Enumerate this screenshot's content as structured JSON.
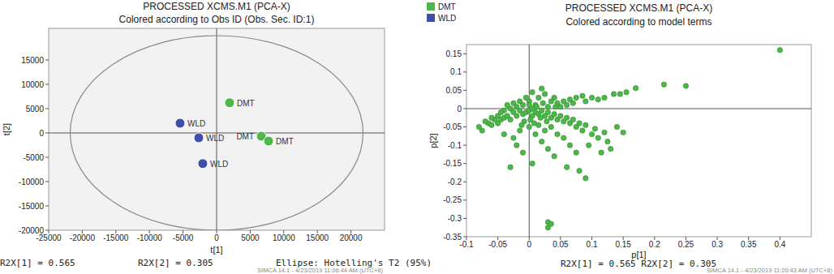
{
  "chart_data": [
    {
      "type": "scatter",
      "title": "PROCESSED XCMS.M1 (PCA-X)",
      "subtitle": "Colored according to Obs ID (Obs. Sec. ID:1)",
      "x_label": "t[1]",
      "y_label": "t[2]",
      "xlim": [
        -25000,
        25000
      ],
      "ylim": [
        -20000,
        21500
      ],
      "xticks": [
        -25000,
        -20000,
        -15000,
        -10000,
        -5000,
        0,
        5000,
        10000,
        15000,
        20000
      ],
      "yticks": [
        -20000,
        -15000,
        -10000,
        -5000,
        0,
        5000,
        10000,
        15000
      ],
      "legend": "top-right",
      "marker": "circle",
      "series": [
        {
          "name": "DMT",
          "color": "#4cb849",
          "x": [
            1930,
            6650,
            7740
          ],
          "values": [
            6200,
            -670,
            -1670
          ],
          "point_labels": [
            "DMT",
            "DMT",
            "DMT"
          ]
        },
        {
          "name": "WLD",
          "color": "#3f4fa8",
          "x": [
            -5440,
            -2660,
            -2060
          ],
          "values": [
            2000,
            -1000,
            -6300
          ],
          "point_labels": [
            "WLD",
            "WLD",
            "WLD"
          ]
        }
      ],
      "ellipse": {
        "label": "Ellipse: Hotelling's T2 (95%)",
        "center": [
          0,
          0
        ],
        "rx": 21800,
        "ry": 20000
      },
      "footer": [
        "R2X[1] = 0.565",
        "R2X[2] = 0.305"
      ],
      "stamp": "SIMCA 14.1 - 4/23/2019 11:06:44 AM (UTC+8)"
    },
    {
      "type": "scatter",
      "title": "PROCESSED XCMS.M1 (PCA-X)",
      "subtitle": "Colored according to model terms",
      "x_label": "p[1]",
      "y_label": "p[2]",
      "xlim": [
        -0.1,
        0.45
      ],
      "ylim": [
        -0.35,
        0.175
      ],
      "xticks": [
        -0.1,
        -0.05,
        0,
        0.05,
        0.1,
        0.15,
        0.2,
        0.25,
        0.3,
        0.35,
        0.4
      ],
      "yticks": [
        -0.35,
        -0.3,
        -0.25,
        -0.2,
        -0.15,
        -0.1,
        -0.05,
        0,
        0.05,
        0.1,
        0.15
      ],
      "marker": "circle",
      "series": [
        {
          "color": "#4cb849",
          "x": [
            0.4,
            0.25,
            0.215,
            0.17,
            0.155,
            0.145,
            0.135,
            0.12,
            0.11,
            0.1,
            0.09,
            0.085,
            0.075,
            0.07,
            0.065,
            0.06,
            0.055,
            0.05,
            0.045,
            0.04,
            0.035,
            0.03,
            0.025,
            0.02,
            0.015,
            0.01,
            0.005,
            0.0,
            -0.005,
            -0.01,
            -0.015,
            -0.02,
            -0.025,
            -0.03,
            -0.035,
            -0.04,
            -0.045,
            -0.05,
            -0.055,
            -0.06,
            -0.065,
            -0.07,
            -0.075,
            -0.08,
            -0.06,
            -0.05,
            -0.045,
            -0.04,
            -0.035,
            -0.03,
            -0.025,
            -0.02,
            -0.015,
            -0.01,
            -0.005,
            0.0,
            0.005,
            0.01,
            0.015,
            0.02,
            0.025,
            0.03,
            0.035,
            0.04,
            0.045,
            0.05,
            0.055,
            0.06,
            0.065,
            0.07,
            0.075,
            0.08,
            0.085,
            0.09,
            0.095,
            0.1,
            0.105,
            0.11,
            0.115,
            0.12,
            0.125,
            0.13,
            0.14,
            0.15,
            0.09,
            0.08,
            0.06,
            0.04,
            0.03,
            0.02,
            0.01,
            0.005,
            -0.01,
            -0.02,
            -0.03,
            -0.025,
            -0.04,
            -0.015,
            0.0,
            0.015,
            0.025,
            0.035,
            0.045,
            0.055,
            0.065,
            0.075,
            0.03,
            0.03,
            0.035,
            0.005,
            0.0,
            0.002,
            0.008,
            -0.008,
            0.012,
            0.018,
            0.022,
            -0.012,
            0.028,
            0.042
          ],
          "values": [
            0.16,
            0.062,
            0.066,
            0.056,
            0.045,
            0.04,
            0.04,
            0.03,
            0.025,
            0.03,
            0.02,
            0.035,
            0.03,
            0.015,
            0.025,
            0.01,
            0.02,
            0.005,
            0.015,
            0.03,
            0.02,
            0.005,
            0.04,
            0.055,
            0.03,
            0.01,
            0.045,
            0.02,
            0.03,
            0.01,
            0.02,
            0.005,
            0.015,
            0.0,
            0.01,
            -0.005,
            -0.01,
            -0.02,
            -0.03,
            -0.025,
            -0.04,
            -0.035,
            -0.06,
            -0.05,
            -0.045,
            -0.04,
            -0.03,
            -0.025,
            -0.02,
            -0.03,
            -0.01,
            -0.02,
            -0.005,
            -0.015,
            -0.01,
            -0.005,
            -0.02,
            -0.01,
            -0.015,
            -0.005,
            -0.02,
            -0.01,
            -0.025,
            -0.015,
            -0.03,
            -0.02,
            -0.035,
            -0.025,
            -0.04,
            -0.03,
            -0.05,
            -0.04,
            -0.06,
            -0.045,
            -0.1,
            -0.07,
            -0.055,
            -0.08,
            -0.12,
            -0.065,
            -0.09,
            -0.11,
            -0.05,
            -0.065,
            -0.19,
            -0.17,
            -0.16,
            -0.13,
            -0.11,
            -0.09,
            -0.07,
            -0.15,
            -0.12,
            -0.1,
            -0.16,
            -0.08,
            -0.07,
            -0.06,
            -0.05,
            -0.045,
            -0.06,
            -0.05,
            -0.07,
            -0.08,
            -0.1,
            -0.12,
            -0.31,
            -0.325,
            -0.315,
            0.0,
            0.01,
            -0.03,
            -0.04,
            -0.035,
            0.005,
            -0.025,
            0.015,
            -0.045,
            -0.035,
            0.005
          ]
        }
      ],
      "footer": [
        "R2X[1] = 0.565 R2X[2] = 0.305"
      ],
      "stamp": "SIMCA 14.1 - 4/23/2019 11:20:43 AM (UTC+8)"
    }
  ]
}
